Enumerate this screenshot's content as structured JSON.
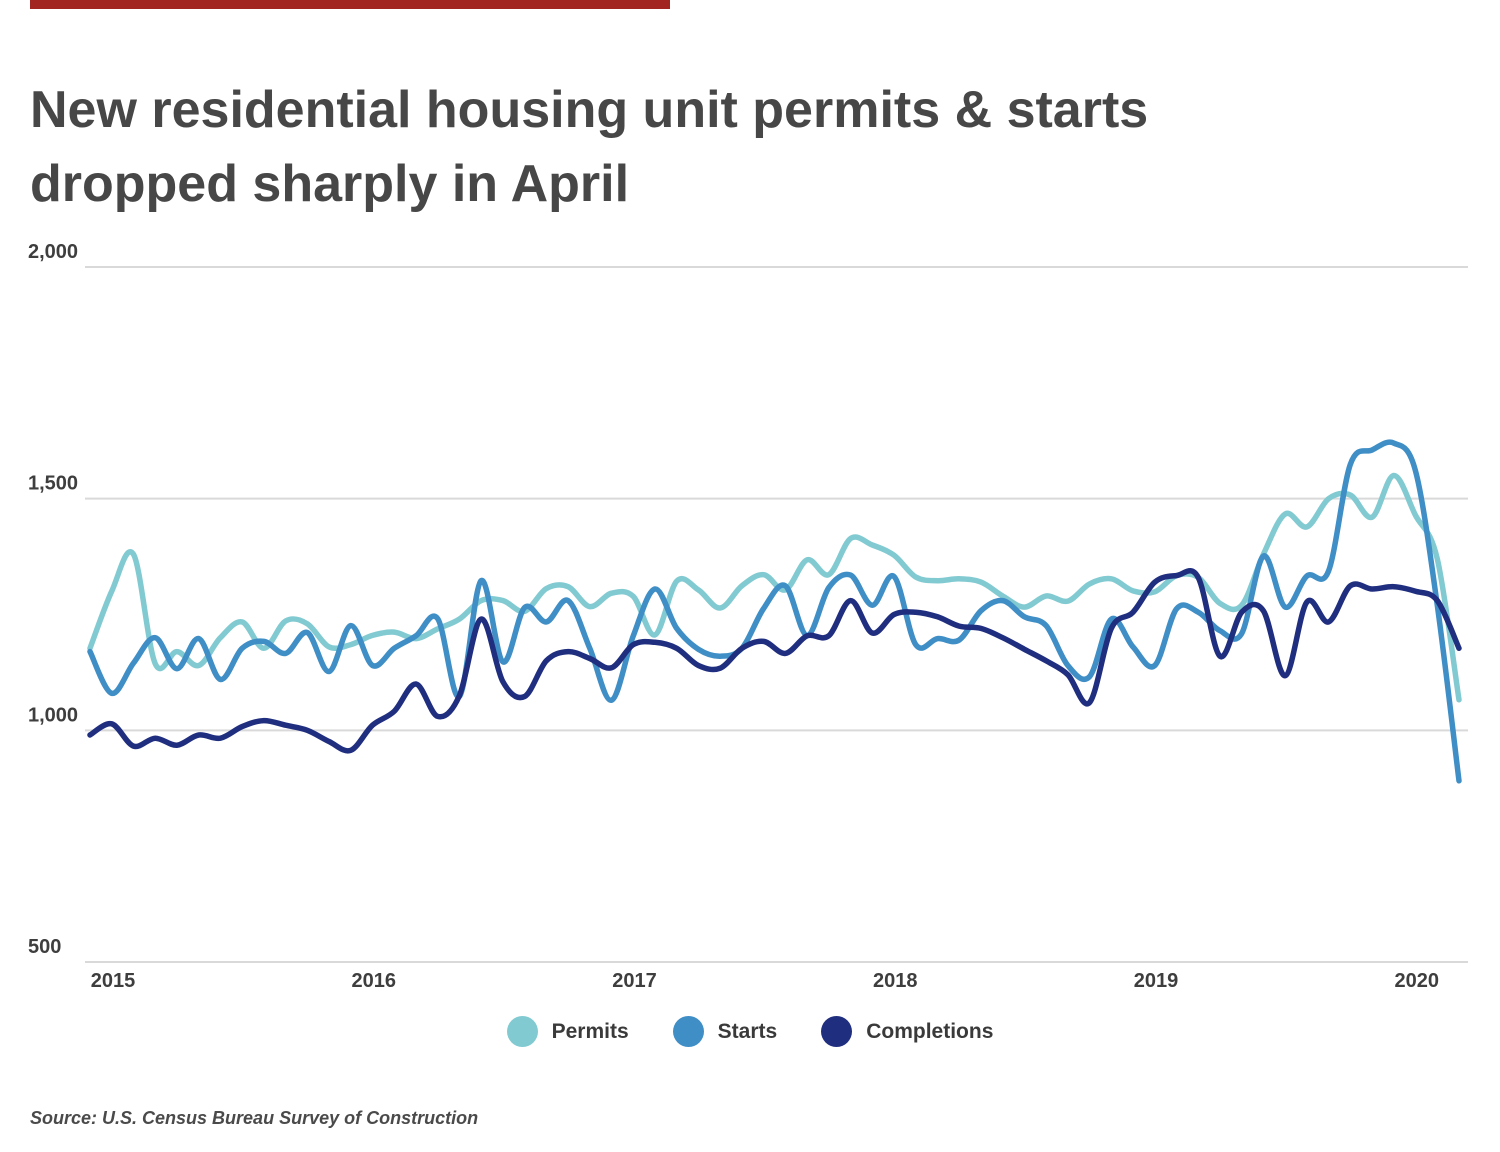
{
  "accent_color": "#A22522",
  "title_line1": "New residential housing unit permits & starts",
  "title_line2": "dropped sharply in April",
  "source": "Source: U.S. Census Bureau Survey of Construction",
  "colors": {
    "title": "#474747",
    "axis_text": "#3e3e3e",
    "gridline": "#d9d9d9",
    "permits": "#82CAD1",
    "starts": "#3F8EC6",
    "completions": "#202E7F"
  },
  "legend": [
    {
      "label": "Permits",
      "color": "#82CAD1"
    },
    {
      "label": "Starts",
      "color": "#3F8EC6"
    },
    {
      "label": "Completions",
      "color": "#202E7F"
    }
  ],
  "chart_data": {
    "type": "line",
    "title": "New residential housing unit permits & starts dropped sharply in April",
    "x_unit": "month",
    "x_start": "2015-01",
    "x_end": "2020-04",
    "x_tick_labels": [
      "2015",
      "2016",
      "2017",
      "2018",
      "2019",
      "2020"
    ],
    "y_ticks": [
      2000,
      1500,
      1000,
      500
    ],
    "y_tick_labels": [
      "2,000",
      "1,500",
      "1,000",
      "500"
    ],
    "ylim": [
      500,
      2000
    ],
    "grid": "horizontal",
    "legend_position": "bottom",
    "series": [
      {
        "name": "Permits",
        "color": "#82CAD1",
        "values": [
          1177,
          1300,
          1380,
          1144,
          1170,
          1140,
          1200,
          1234,
          1177,
          1236,
          1230,
          1180,
          1185,
          1205,
          1212,
          1198,
          1219,
          1240,
          1280,
          1280,
          1257,
          1306,
          1310,
          1267,
          1296,
          1289,
          1206,
          1322,
          1303,
          1264,
          1312,
          1336,
          1303,
          1368,
          1336,
          1414,
          1400,
          1378,
          1331,
          1323,
          1327,
          1320,
          1290,
          1266,
          1290,
          1279,
          1316,
          1327,
          1301,
          1299,
          1334,
          1330,
          1274,
          1270,
          1380,
          1467,
          1439,
          1500,
          1508,
          1460,
          1550,
          1464,
          1370,
          1066
        ]
      },
      {
        "name": "Starts",
        "color": "#3F8EC6",
        "values": [
          1170,
          1080,
          1145,
          1200,
          1133,
          1198,
          1110,
          1177,
          1192,
          1166,
          1211,
          1127,
          1226,
          1140,
          1177,
          1204,
          1241,
          1073,
          1323,
          1148,
          1265,
          1234,
          1280,
          1177,
          1065,
          1204,
          1305,
          1220,
          1175,
          1160,
          1177,
          1263,
          1312,
          1205,
          1308,
          1335,
          1270,
          1332,
          1185,
          1198,
          1195,
          1258,
          1280,
          1245,
          1226,
          1140,
          1116,
          1240,
          1180,
          1140,
          1262,
          1255,
          1215,
          1209,
          1376,
          1266,
          1333,
          1344,
          1574,
          1605,
          1620,
          1560,
          1270,
          891
        ]
      },
      {
        "name": "Completions",
        "color": "#202E7F",
        "values": [
          990,
          1014,
          966,
          983,
          968,
          990,
          983,
          1008,
          1021,
          1011,
          1000,
          976,
          957,
          1011,
          1041,
          1100,
          1030,
          1075,
          1240,
          1105,
          1073,
          1150,
          1170,
          1155,
          1135,
          1185,
          1190,
          1177,
          1140,
          1134,
          1177,
          1192,
          1166,
          1204,
          1204,
          1280,
          1210,
          1250,
          1255,
          1245,
          1225,
          1220,
          1200,
          1175,
          1150,
          1120,
          1060,
          1220,
          1255,
          1320,
          1334,
          1330,
          1160,
          1255,
          1258,
          1118,
          1277,
          1234,
          1312,
          1305,
          1310,
          1300,
          1280,
          1177
        ]
      }
    ]
  }
}
